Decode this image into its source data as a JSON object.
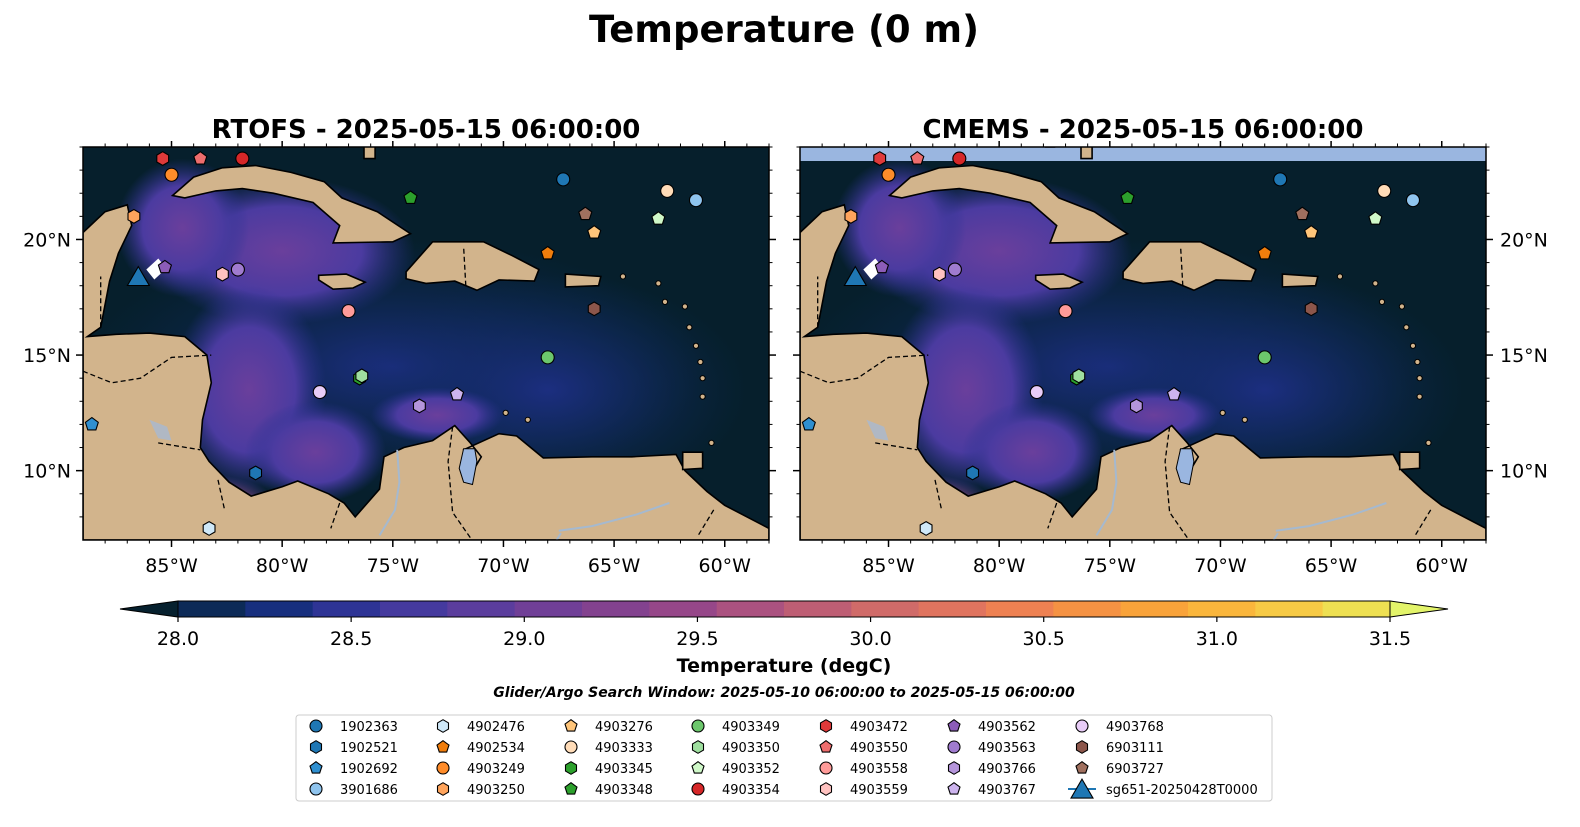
{
  "figure": {
    "title": "Temperature (0 m)"
  },
  "panels": [
    {
      "title": "RTOFS - 2025-05-15 06:00:00"
    },
    {
      "title": "CMEMS - 2025-05-15 06:00:00"
    }
  ],
  "colorbar": {
    "label": "Temperature (degC)",
    "ticks": [
      "28.0",
      "28.5",
      "29.0",
      "29.5",
      "30.0",
      "30.5",
      "31.0",
      "31.5"
    ],
    "colors": [
      "#06202e",
      "#0c2a57",
      "#172f7e",
      "#2e3495",
      "#453a9e",
      "#5b3d9d",
      "#703f97",
      "#83428f",
      "#964789",
      "#ab5280",
      "#be5e74",
      "#d06b69",
      "#e0745f",
      "#ee8152",
      "#f59243",
      "#f9a33a",
      "#fab63c",
      "#f7ca45",
      "#eee052",
      "#e3f46a"
    ]
  },
  "search_window": "Glider/Argo Search Window: 2025-05-10 06:00:00 to 2025-05-15 06:00:00",
  "colors": {
    "ocean_dark": "#061f2c",
    "ocean_mid": "#1a2d78",
    "ocean_warm": "#4b3ba0",
    "land": "#d2b48c",
    "lake": "#9ab6e0",
    "river": "#a5b9cf",
    "cmems_top_band": "#9ab6e0"
  },
  "chart_data": {
    "type": "map",
    "projection": "PlateCarree",
    "xlim": [
      -89,
      -58
    ],
    "ylim": [
      7,
      24
    ],
    "xticks": [
      "85°W",
      "80°W",
      "75°W",
      "70°W",
      "65°W",
      "60°W"
    ],
    "yticks": [
      "20°N",
      "15°N",
      "10°N"
    ],
    "colorbar_range": [
      28.0,
      31.5
    ],
    "colorbar_extend": "both",
    "glider": {
      "name": "sg651-20250428T0000",
      "lon": -86.5,
      "lat": 18.4,
      "marker": "triangle",
      "color": "#1f77b4"
    },
    "floats": [
      {
        "id": "1902363",
        "lon": -67.3,
        "lat": 22.6,
        "marker": "circle",
        "color": "#1f77b4"
      },
      {
        "id": "1902521",
        "lon": -81.2,
        "lat": 9.9,
        "marker": "hexagon",
        "color": "#1f77b4"
      },
      {
        "id": "1902692",
        "lon": -88.6,
        "lat": 12.0,
        "marker": "pentagon",
        "color": "#2f8fd0"
      },
      {
        "id": "3901686",
        "lon": -61.3,
        "lat": 21.7,
        "marker": "circle",
        "color": "#8fc4ee"
      },
      {
        "id": "4902476",
        "lon": -83.3,
        "lat": 7.5,
        "marker": "hexagon",
        "color": "#cfe8f8"
      },
      {
        "id": "4902534",
        "lon": -68.0,
        "lat": 19.4,
        "marker": "pentagon",
        "color": "#f07d0c"
      },
      {
        "id": "4903249",
        "lon": -85.0,
        "lat": 22.8,
        "marker": "circle",
        "color": "#ff8c2a"
      },
      {
        "id": "4903250",
        "lon": -86.7,
        "lat": 21.0,
        "marker": "hexagon",
        "color": "#ffa45c"
      },
      {
        "id": "4903276",
        "lon": -65.9,
        "lat": 20.3,
        "marker": "pentagon",
        "color": "#ffc57a"
      },
      {
        "id": "4903333",
        "lon": -62.6,
        "lat": 22.1,
        "marker": "circle",
        "color": "#ffdcb8"
      },
      {
        "id": "4903345",
        "lon": -76.5,
        "lat": 14.0,
        "marker": "hexagon",
        "color": "#2ca02c"
      },
      {
        "id": "4903348",
        "lon": -74.2,
        "lat": 21.8,
        "marker": "pentagon",
        "color": "#2ca02c"
      },
      {
        "id": "4903349",
        "lon": -68.0,
        "lat": 14.9,
        "marker": "circle",
        "color": "#6cc76c"
      },
      {
        "id": "4903350",
        "lon": -76.4,
        "lat": 14.1,
        "marker": "hexagon",
        "color": "#9fdf9f"
      },
      {
        "id": "4903352",
        "lon": -63.0,
        "lat": 20.9,
        "marker": "pentagon",
        "color": "#cff8c8"
      },
      {
        "id": "4903354",
        "lon": -81.8,
        "lat": 23.5,
        "marker": "circle",
        "color": "#d62728"
      },
      {
        "id": "4903472",
        "lon": -85.4,
        "lat": 23.5,
        "marker": "hexagon",
        "color": "#e03a3a"
      },
      {
        "id": "4903550",
        "lon": -83.7,
        "lat": 23.5,
        "marker": "pentagon",
        "color": "#ee6d6d"
      },
      {
        "id": "4903558",
        "lon": -77.0,
        "lat": 16.9,
        "marker": "circle",
        "color": "#ff9b99"
      },
      {
        "id": "4903559",
        "lon": -82.7,
        "lat": 18.5,
        "marker": "hexagon",
        "color": "#ffc2c0"
      },
      {
        "id": "4903562",
        "lon": -85.3,
        "lat": 18.8,
        "marker": "pentagon",
        "color": "#8c5cb8"
      },
      {
        "id": "4903563",
        "lon": -82.0,
        "lat": 18.7,
        "marker": "circle",
        "color": "#a07bcf"
      },
      {
        "id": "4903766",
        "lon": -73.8,
        "lat": 12.8,
        "marker": "hexagon",
        "color": "#b595db"
      },
      {
        "id": "4903767",
        "lon": -72.1,
        "lat": 13.3,
        "marker": "pentagon",
        "color": "#cdb4ee"
      },
      {
        "id": "4903768",
        "lon": -78.3,
        "lat": 13.4,
        "marker": "circle",
        "color": "#e8ccf7"
      },
      {
        "id": "6903111",
        "lon": -65.9,
        "lat": 17.0,
        "marker": "hexagon",
        "color": "#8c564b"
      },
      {
        "id": "6903727",
        "lon": -66.3,
        "lat": 21.1,
        "marker": "pentagon",
        "color": "#a0705f"
      }
    ]
  }
}
